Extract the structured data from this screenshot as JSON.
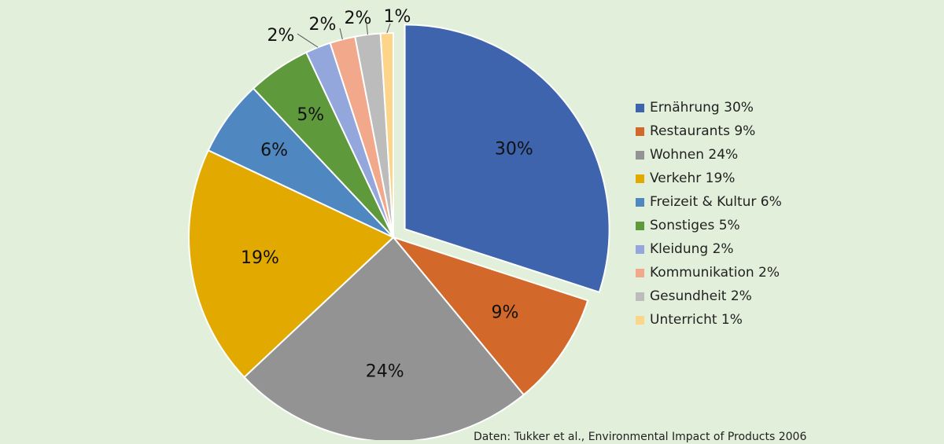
{
  "chart_data": {
    "type": "pie",
    "title": "",
    "categories": [
      "Ernährung",
      "Restaurants",
      "Wohnen",
      "Verkehr",
      "Freizeit & Kultur",
      "Sonstiges",
      "Kleidung",
      "Kommunikation",
      "Gesundheit",
      "Unterricht"
    ],
    "values": [
      30,
      9,
      24,
      19,
      6,
      5,
      2,
      2,
      2,
      1
    ],
    "value_labels": [
      "30%",
      "9%",
      "24%",
      "19%",
      "6%",
      "5%",
      "2%",
      "2%",
      "2%",
      "1%"
    ],
    "legend_labels": [
      "Ernährung 30%",
      "Restaurants 9%",
      "Wohnen 24%",
      "Verkehr 19%",
      "Freizeit & Kultur 6%",
      "Sonstiges 5%",
      "Kleidung 2%",
      "Kommunikation 2%",
      "Gesundheit 2%",
      "Unterricht 1%"
    ],
    "colors": [
      "#3e64ad",
      "#d2682a",
      "#939393",
      "#e2aa00",
      "#4f87c0",
      "#5e9a3c",
      "#93a7dc",
      "#f2a88a",
      "#bcbcbc",
      "#fdd58a"
    ],
    "exploded": "Ernährung",
    "legend_position": "right"
  },
  "source_note": "Daten: Tukker et al., Environmental Impact of Products 2006"
}
